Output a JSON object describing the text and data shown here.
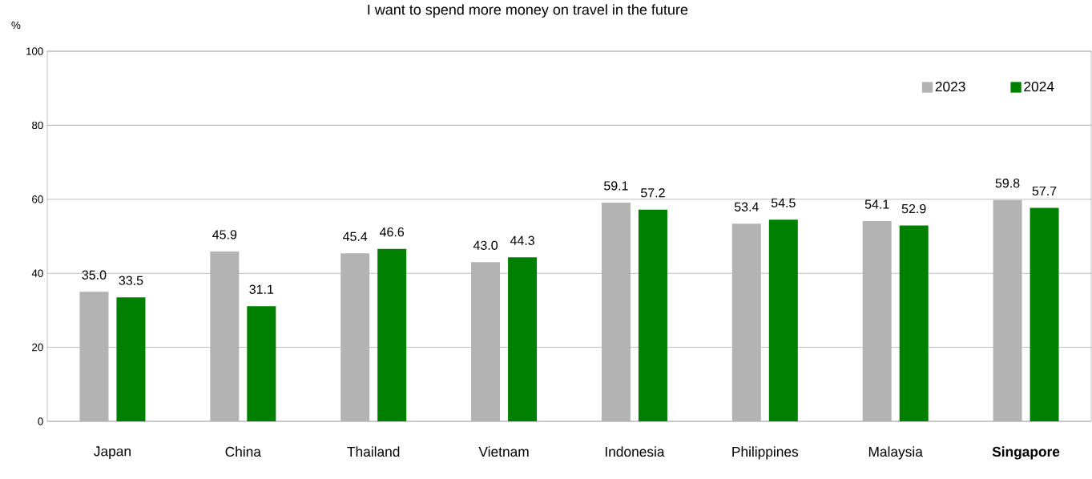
{
  "chart_data": {
    "type": "bar",
    "title": "I want to spend more money on travel in the future",
    "ylabel": "%",
    "categories": [
      "Japan",
      "China",
      "Thailand",
      "Vietnam",
      "Indonesia",
      "Philippines",
      "Malaysia",
      "**Singapore**"
    ],
    "series": [
      {
        "name": "2023",
        "color": "#b3b3b3",
        "values": [
          35.0,
          45.9,
          45.4,
          43.0,
          59.1,
          53.4,
          54.1,
          59.8
        ],
        "value_labels": [
          "35.0",
          "45.9",
          "45.4",
          "43.0",
          "59.1",
          "53.4",
          "54.1",
          "59.8"
        ]
      },
      {
        "name": "2024",
        "color": "#008000",
        "values": [
          33.5,
          31.1,
          46.6,
          44.3,
          57.2,
          54.5,
          52.9,
          57.7
        ],
        "value_labels": [
          "33.5",
          "31.1",
          "46.6",
          "44.3",
          "57.2",
          "54.5",
          "52.9",
          "57.7"
        ]
      }
    ],
    "ylim": [
      0,
      100
    ],
    "yticks": [
      0,
      20,
      40,
      60,
      80,
      100
    ],
    "grid": "y",
    "legend": "top right"
  }
}
